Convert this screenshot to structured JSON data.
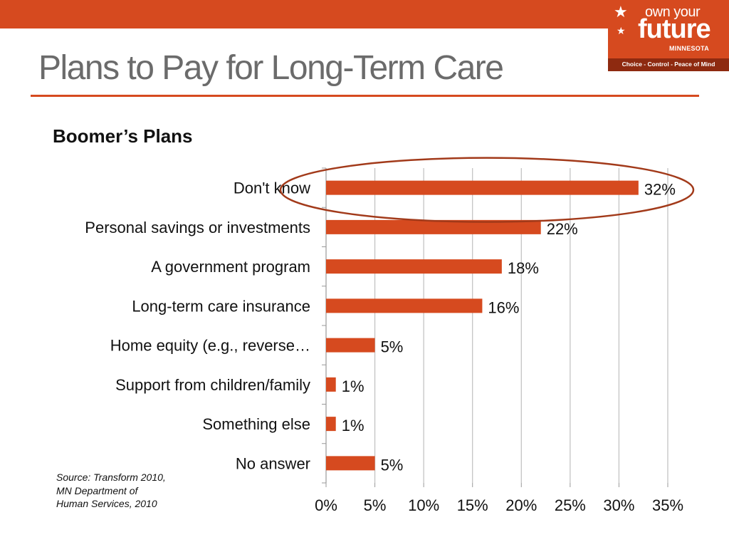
{
  "colors": {
    "accent": "#d64a1f",
    "logo_bg": "#d64a1f",
    "logo_band": "#8e2a10",
    "title": "#6b6b6b",
    "circle": "#a23a1a",
    "grid": "#bfbfbf"
  },
  "header": {
    "title": "Plans to Pay for Long-Term Care"
  },
  "logo": {
    "line1": "own your",
    "line2": "future",
    "line3": "MINNESOTA",
    "tagline": "Choice - Control - Peace of Mind",
    "icons": [
      "star-icon",
      "star-icon"
    ]
  },
  "subtitle": "Boomer’s Plans",
  "source": {
    "line1": "Source: Transform 2010,",
    "line2": "MN Department of",
    "line3": "Human Services, 2010"
  },
  "chart_data": {
    "type": "bar",
    "orientation": "horizontal",
    "title": "Boomer’s Plans",
    "categories": [
      "Don't know",
      "Personal savings or investments",
      "A government program",
      "Long-term care insurance",
      "Home equity (e.g., reverse…",
      "Support from children/family",
      "Something else",
      "No answer"
    ],
    "values": [
      32,
      22,
      18,
      16,
      5,
      1,
      1,
      5
    ],
    "data_labels": [
      "32%",
      "22%",
      "18%",
      "16%",
      "5%",
      "1%",
      "1%",
      "5%"
    ],
    "xlim": [
      0,
      35
    ],
    "xticks": [
      0,
      5,
      10,
      15,
      20,
      25,
      30,
      35
    ],
    "xtick_labels": [
      "0%",
      "5%",
      "10%",
      "15%",
      "20%",
      "25%",
      "30%",
      "35%"
    ],
    "xlabel": "",
    "ylabel": "",
    "grid": true,
    "highlight": {
      "category": "Don't know",
      "shape": "ellipse"
    }
  }
}
